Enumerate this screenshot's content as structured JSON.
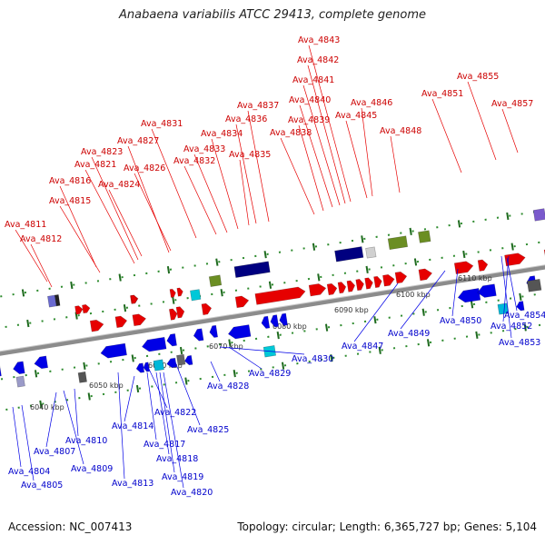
{
  "title": "Anabaena variabilis ATCC 29413, complete genome",
  "footer": {
    "accession": "Accession: NC_007413",
    "summary": "Topology: circular; Length: 6,365,727 bp; Genes: 5,104"
  },
  "scale_labels": [
    "6040 kbp",
    "6050 kbp",
    "6060 kbp",
    "6070 kbp",
    "6080 kbp",
    "6090 kbp",
    "6100 kbp",
    "6110 kbp"
  ],
  "forward_labels": [
    "Ava_4811",
    "Ava_4812",
    "Ava_4815",
    "Ava_4816",
    "Ava_4821",
    "Ava_4823",
    "Ava_4824",
    "Ava_4826",
    "Ava_4827",
    "Ava_4831",
    "Ava_4832",
    "Ava_4833",
    "Ava_4834",
    "Ava_4835",
    "Ava_4836",
    "Ava_4837",
    "Ava_4838",
    "Ava_4839",
    "Ava_4840",
    "Ava_4841",
    "Ava_4842",
    "Ava_4843",
    "Ava_4845",
    "Ava_4846",
    "Ava_4848",
    "Ava_4851",
    "Ava_4855",
    "Ava_4857"
  ],
  "reverse_labels": [
    "Ava_4804",
    "Ava_4805",
    "Ava_4807",
    "Ava_4809",
    "Ava_4810",
    "Ava_4813",
    "Ava_4814",
    "Ava_4817",
    "Ava_4818",
    "Ava_4819",
    "Ava_4820",
    "Ava_4822",
    "Ava_4825",
    "Ava_4828",
    "Ava_4829",
    "Ava_4830",
    "Ava_4847",
    "Ava_4849",
    "Ava_4850",
    "Ava_4852",
    "Ava_4853",
    "Ava_4854"
  ],
  "colors": {
    "forward": "#e60000",
    "reverse": "#0000e6",
    "backbone": "#8c8c8c",
    "tick": "#2e8b2e",
    "rna": "#000080",
    "other": "#6b8e23"
  }
}
